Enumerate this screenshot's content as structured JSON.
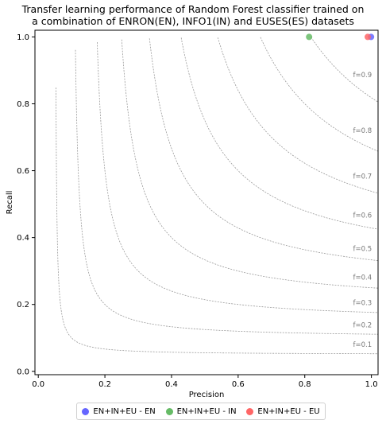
{
  "chart_data": {
    "type": "scatter",
    "title_line1": "Transfer learning performance of Random Forest classifier trained on",
    "title_line2": "a combination of ENRON(EN), INFO1(IN) and EUSES(ES) datasets",
    "xlabel": "Precision",
    "ylabel": "Recall",
    "xlim": [
      -0.01,
      1.02
    ],
    "ylim": [
      -0.01,
      1.02
    ],
    "xticks": [
      0.0,
      0.2,
      0.4,
      0.6,
      0.8,
      1.0
    ],
    "yticks": [
      0.0,
      0.2,
      0.4,
      0.6,
      0.8,
      1.0
    ],
    "xtick_labels": [
      "0.0",
      "0.2",
      "0.4",
      "0.6",
      "0.8",
      "1.0"
    ],
    "ytick_labels": [
      "0.0",
      "0.2",
      "0.4",
      "0.6",
      "0.8",
      "1.0"
    ],
    "iso_f1_curves": [
      0.1,
      0.2,
      0.3,
      0.4,
      0.5,
      0.6,
      0.7,
      0.8,
      0.9
    ],
    "iso_f1_labels": [
      "f=0.1",
      "f=0.2",
      "f=0.3",
      "f=0.4",
      "f=0.5",
      "f=0.6",
      "f=0.7",
      "f=0.8",
      "f=0.9"
    ],
    "legend_position": "bottom-center",
    "grid": false,
    "series": [
      {
        "name": "EN+IN+EU - EN",
        "color": "#6666ff",
        "x": [
          0.999
        ],
        "y": [
          1.0
        ]
      },
      {
        "name": "EN+IN+EU - IN",
        "color": "#66bb66",
        "x": [
          0.813
        ],
        "y": [
          1.0
        ]
      },
      {
        "name": "EN+IN+EU - EU",
        "color": "#ff6666",
        "x": [
          0.989
        ],
        "y": [
          1.0
        ]
      }
    ]
  }
}
